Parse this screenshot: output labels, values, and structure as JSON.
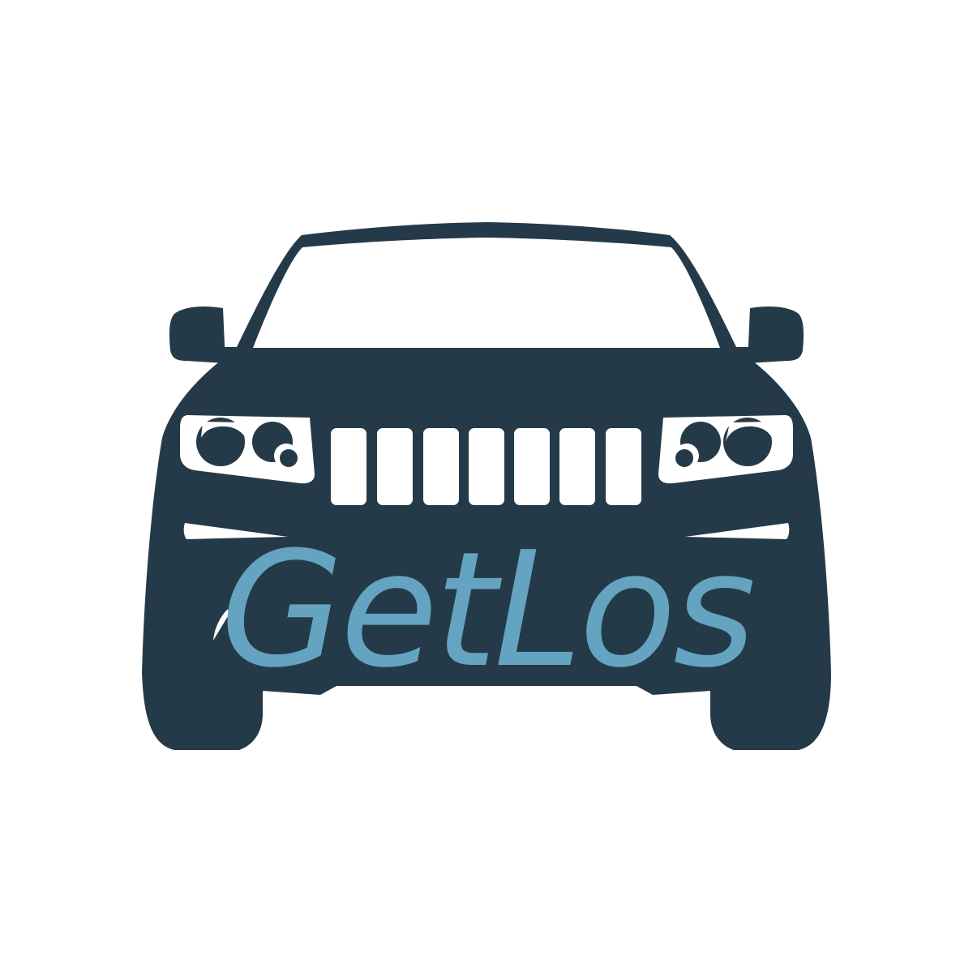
{
  "logo": {
    "wordmark": "GetLos",
    "icon": "suv-front-icon"
  },
  "colors": {
    "background": "#ffffff",
    "body": "#253a48",
    "cutout": "#ffffff",
    "wordmark": "#64a4c0"
  }
}
